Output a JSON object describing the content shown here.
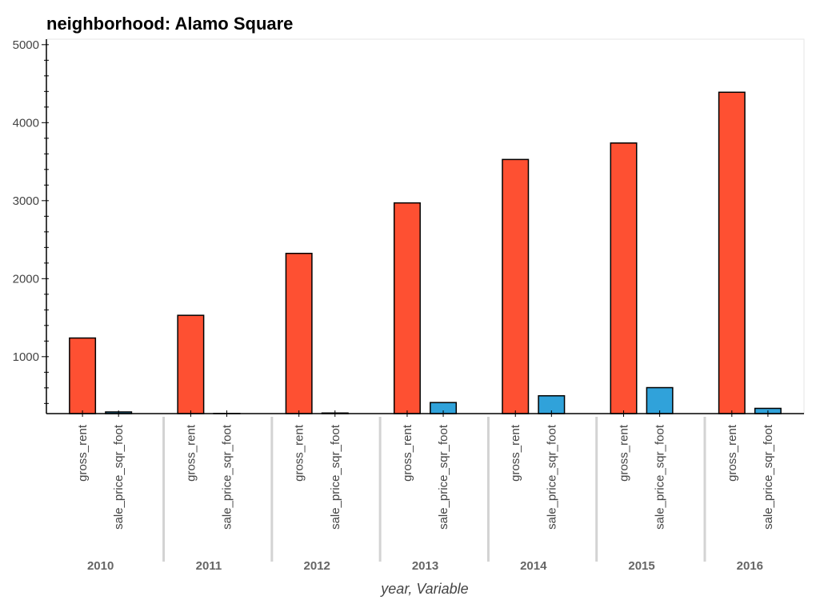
{
  "chart_data": {
    "type": "bar",
    "title": "neighborhood: Alamo Square",
    "xlabel": "year, Variable",
    "ylabel": "",
    "groups": [
      "2010",
      "2011",
      "2012",
      "2013",
      "2014",
      "2015",
      "2016"
    ],
    "subcategories": [
      "gross_rent",
      "sale_price_sqr_foot"
    ],
    "series": [
      {
        "name": "gross_rent",
        "color": "#fe5032",
        "values": [
          1239,
          1530,
          2324,
          2971,
          3528,
          3739,
          4390
        ]
      },
      {
        "name": "sale_price_sqr_foot",
        "color": "#30a2da",
        "values": [
          291.18,
          272.53,
          277.42,
          411.64,
          498.49,
          603,
          337
        ]
      }
    ],
    "y_ticks": [
      "1000",
      "2000",
      "3000",
      "4000",
      "5000"
    ],
    "ylim": [
      270,
      5070
    ],
    "grid": false,
    "legend": "none"
  }
}
